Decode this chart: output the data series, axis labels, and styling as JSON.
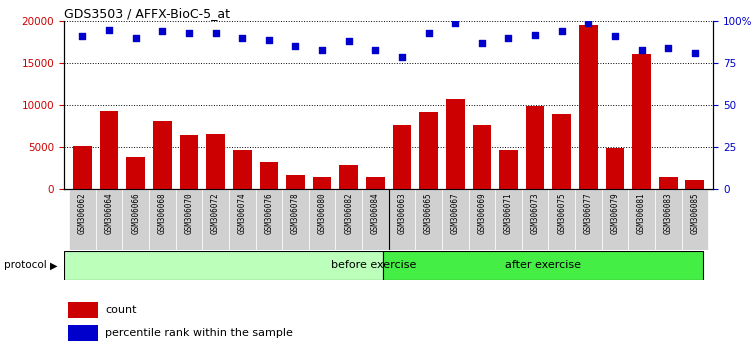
{
  "title": "GDS3503 / AFFX-BioC-5_at",
  "categories": [
    "GSM306062",
    "GSM306064",
    "GSM306066",
    "GSM306068",
    "GSM306070",
    "GSM306072",
    "GSM306074",
    "GSM306076",
    "GSM306078",
    "GSM306080",
    "GSM306082",
    "GSM306084",
    "GSM306063",
    "GSM306065",
    "GSM306067",
    "GSM306069",
    "GSM306071",
    "GSM306073",
    "GSM306075",
    "GSM306077",
    "GSM306079",
    "GSM306081",
    "GSM306083",
    "GSM306085"
  ],
  "counts": [
    5200,
    9300,
    3900,
    8100,
    6500,
    6600,
    4700,
    3200,
    1700,
    1500,
    2900,
    1500,
    7700,
    9200,
    10700,
    7700,
    4700,
    9900,
    9000,
    19500,
    4900,
    16100,
    1500,
    1100
  ],
  "percentile_ranks": [
    91,
    95,
    90,
    94,
    93,
    93,
    90,
    89,
    85,
    83,
    88,
    83,
    79,
    93,
    99,
    87,
    90,
    92,
    94,
    99,
    91,
    83,
    84,
    81
  ],
  "before_exercise_count": 12,
  "after_exercise_count": 12,
  "ylim_left": [
    0,
    20000
  ],
  "ylim_right": [
    0,
    100
  ],
  "yticks_left": [
    0,
    5000,
    10000,
    15000,
    20000
  ],
  "yticks_right": [
    0,
    25,
    50,
    75,
    100
  ],
  "bar_color": "#cc0000",
  "dot_color": "#0000cc",
  "before_color": "#bbffbb",
  "after_color": "#44ee44",
  "cell_bg_color": "#d0d0d0",
  "protocol_label": "protocol",
  "before_label": "before exercise",
  "after_label": "after exercise",
  "legend_count": "count",
  "legend_percentile": "percentile rank within the sample"
}
